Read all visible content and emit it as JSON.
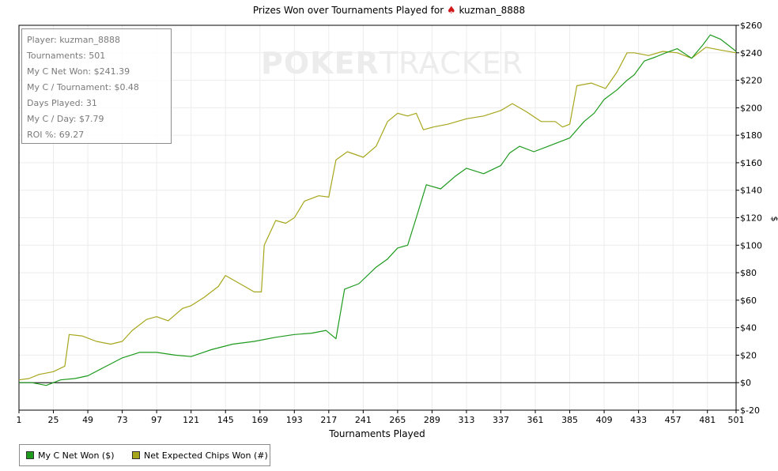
{
  "title": {
    "prefix": "Prizes Won over Tournaments Played for",
    "suit_icon": "spade-icon",
    "player": "kuzman_8888"
  },
  "watermark": {
    "bold": "POKER",
    "light": "TRACKER"
  },
  "stats": [
    "Player: kuzman_8888",
    "Tournaments: 501",
    "My C Net Won: $241.39",
    "My C / Tournament: $0.48",
    "Days Played: 31",
    "My C / Day: $7.79",
    "ROI %: 69.27"
  ],
  "legend": [
    {
      "label": "My C Net Won ($)",
      "color": "#1e9a1e"
    },
    {
      "label": "Net Expected Chips Won (#)",
      "color": "#a6a61c"
    }
  ],
  "chart_data": {
    "type": "line",
    "xlabel": "Tournaments Played",
    "ylabel": "$",
    "xlim": [
      1,
      501
    ],
    "ylim": [
      -20,
      260
    ],
    "xticks": [
      1,
      25,
      49,
      73,
      97,
      121,
      145,
      169,
      193,
      217,
      241,
      265,
      289,
      313,
      337,
      361,
      385,
      409,
      433,
      457,
      481,
      501
    ],
    "yticks": [
      -20,
      0,
      20,
      40,
      60,
      80,
      100,
      120,
      140,
      160,
      180,
      200,
      220,
      240,
      260
    ],
    "ytick_labels": [
      "$-20",
      "$0",
      "$20",
      "$40",
      "$60",
      "$80",
      "$100",
      "$120",
      "$140",
      "$160",
      "$180",
      "$200",
      "$220",
      "$240",
      "$260"
    ],
    "grid": true,
    "series": [
      {
        "name": "My C Net Won ($)",
        "color": "#1e9a1e",
        "x": [
          1,
          10,
          20,
          30,
          40,
          49,
          60,
          73,
          85,
          97,
          110,
          121,
          135,
          150,
          165,
          180,
          193,
          205,
          215,
          222,
          228,
          238,
          250,
          258,
          265,
          272,
          278,
          285,
          295,
          305,
          313,
          325,
          337,
          343,
          350,
          360,
          370,
          385,
          395,
          402,
          409,
          418,
          425,
          430,
          437,
          445,
          452,
          460,
          470,
          478,
          483,
          490,
          495,
          501
        ],
        "y": [
          0,
          0,
          -2,
          2,
          3,
          5,
          11,
          18,
          22,
          22,
          20,
          19,
          24,
          28,
          30,
          33,
          35,
          36,
          38,
          32,
          68,
          72,
          84,
          90,
          98,
          100,
          120,
          144,
          141,
          150,
          156,
          152,
          158,
          167,
          172,
          168,
          172,
          178,
          190,
          196,
          206,
          213,
          220,
          224,
          234,
          237,
          240,
          243,
          236,
          246,
          253,
          250,
          246,
          241
        ]
      },
      {
        "name": "Net Expected Chips Won (#)",
        "color": "#a6a61c",
        "x": [
          1,
          8,
          15,
          25,
          33,
          36,
          45,
          55,
          65,
          73,
          80,
          90,
          97,
          105,
          115,
          121,
          130,
          140,
          145,
          155,
          165,
          170,
          172,
          180,
          187,
          193,
          200,
          210,
          217,
          222,
          230,
          241,
          250,
          258,
          265,
          272,
          278,
          283,
          290,
          300,
          313,
          325,
          337,
          345,
          355,
          365,
          375,
          380,
          385,
          390,
          400,
          410,
          418,
          425,
          430,
          440,
          450,
          460,
          470,
          480,
          490,
          501
        ],
        "y": [
          2,
          3,
          6,
          8,
          12,
          35,
          34,
          30,
          28,
          30,
          38,
          46,
          48,
          45,
          54,
          56,
          62,
          70,
          78,
          72,
          66,
          66,
          100,
          118,
          116,
          120,
          132,
          136,
          135,
          162,
          168,
          164,
          172,
          190,
          196,
          194,
          196,
          184,
          186,
          188,
          192,
          194,
          198,
          203,
          197,
          190,
          190,
          186,
          188,
          216,
          218,
          214,
          226,
          240,
          240,
          238,
          241,
          240,
          236,
          244,
          242,
          240
        ]
      }
    ]
  }
}
